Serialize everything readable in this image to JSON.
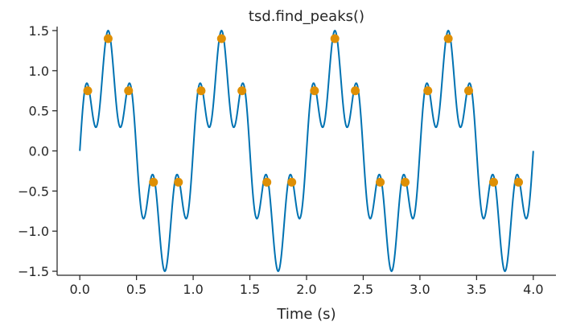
{
  "chart_data": {
    "type": "line",
    "title": "tsd.find_peaks()",
    "xlabel": "Time (s)",
    "ylabel": "",
    "xlim": [
      -0.2,
      4.2
    ],
    "ylim": [
      -1.55,
      1.55
    ],
    "grid": false,
    "x_ticks": [
      0.0,
      0.5,
      1.0,
      1.5,
      2.0,
      2.5,
      3.0,
      3.5,
      4.0
    ],
    "x_tick_labels": [
      "0.0",
      "0.5",
      "1.0",
      "1.5",
      "2.0",
      "2.5",
      "3.0",
      "3.5",
      "4.0"
    ],
    "y_ticks": [
      -1.5,
      -1.0,
      -0.5,
      0.0,
      0.5,
      1.0,
      1.5
    ],
    "y_tick_labels": [
      "−1.5",
      "−1.0",
      "−0.5",
      "0.0",
      "0.5",
      "1.0",
      "1.5"
    ],
    "series": [
      {
        "kind": "line",
        "color": "#0072b2",
        "x_range": [
          0.0,
          4.0
        ],
        "formula": "sin(2*pi*t) + 0.5*sin(10*pi*t)"
      },
      {
        "kind": "scatter",
        "color": "#de8f05",
        "x": [
          0.07,
          0.25,
          0.43,
          0.65,
          0.87,
          1.07,
          1.25,
          1.43,
          1.65,
          1.87,
          2.07,
          2.25,
          2.43,
          2.65,
          2.87,
          3.07,
          3.25,
          3.43,
          3.65,
          3.87
        ],
        "y": [
          0.75,
          1.4,
          0.75,
          -0.39,
          -0.39,
          0.75,
          1.4,
          0.75,
          -0.39,
          -0.39,
          0.75,
          1.4,
          0.75,
          -0.39,
          -0.39,
          0.75,
          1.4,
          0.75,
          -0.39,
          -0.39
        ]
      }
    ]
  }
}
